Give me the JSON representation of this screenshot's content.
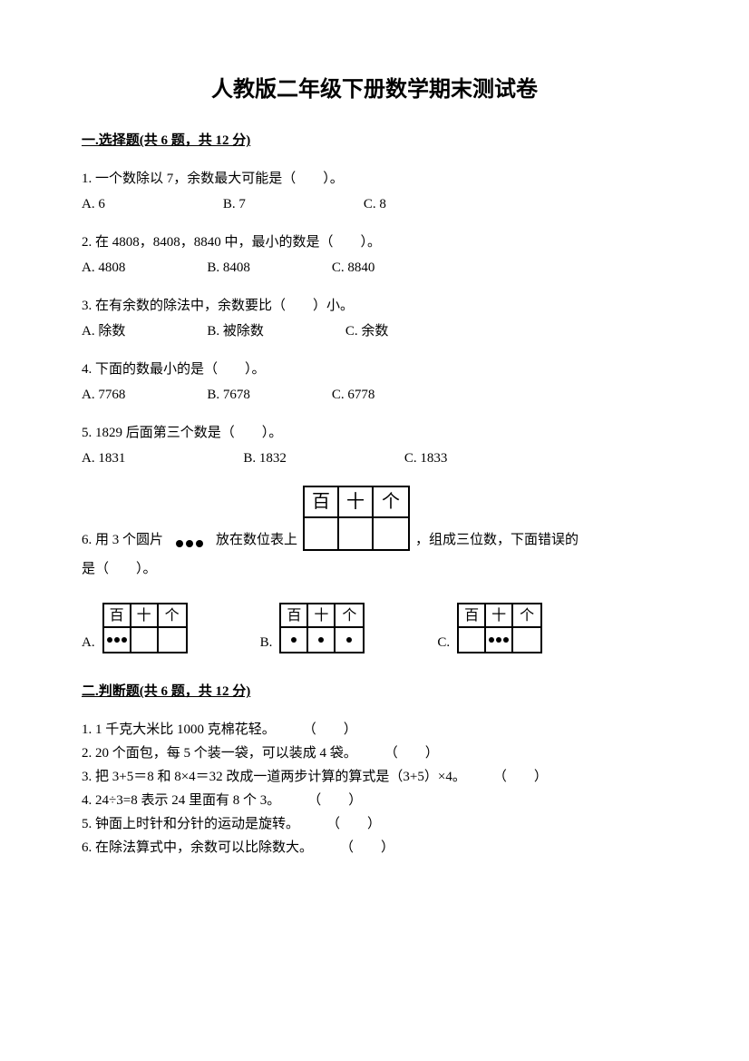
{
  "title": "人教版二年级下册数学期末测试卷",
  "section1": {
    "header": "一.选择题(共 6 题，共 12 分)",
    "q1": {
      "text": "1. 一个数除以 7，余数最大可能是（　　）。",
      "optA": "A. 6",
      "optB": "B. 7",
      "optC": "C. 8"
    },
    "q2": {
      "text": "2. 在 4808，8408，8840 中，最小的数是（　　）。",
      "optA": "A. 4808",
      "optB": "B. 8408",
      "optC": "C. 8840"
    },
    "q3": {
      "text": "3. 在有余数的除法中，余数要比（　　）小。",
      "optA": "A. 除数",
      "optB": "B. 被除数",
      "optC": "C. 余数"
    },
    "q4": {
      "text": "4. 下面的数最小的是（　　）。",
      "optA": "A. 7768",
      "optB": "B. 7678",
      "optC": "C. 6778"
    },
    "q5": {
      "text": "5. 1829 后面第三个数是（　　）。",
      "optA": "A. 1831",
      "optB": "B. 1832",
      "optC": "C. 1833"
    },
    "q6": {
      "prefix": "6. 用 3 个圆片",
      "mid1": "放在数位表上",
      "suffix": "，组成三位数，下面错误的",
      "line2": "是（　　）。",
      "headers": {
        "h": "百",
        "t": "十",
        "o": "个"
      },
      "optA": "A.",
      "optB": "B.",
      "optC": "C."
    }
  },
  "section2": {
    "header": "二.判断题(共 6 题，共 12 分)",
    "items": [
      {
        "text": "1. 1 千克大米比 1000 克棉花轻。",
        "paren": "（　　）"
      },
      {
        "text": "2. 20 个面包，每 5 个装一袋，可以装成 4 袋。",
        "paren": "（　　）"
      },
      {
        "text": "3. 把 3+5＝8 和 8×4＝32 改成一道两步计算的算式是（3+5）×4。",
        "paren": "（　　）"
      },
      {
        "text": "4. 24÷3=8 表示 24 里面有 8 个 3。",
        "paren": "（　　）"
      },
      {
        "text": "5. 钟面上时针和分针的运动是旋转。",
        "paren": "（　　）"
      },
      {
        "text": "6. 在除法算式中，余数可以比除数大。",
        "paren": "（　　）"
      }
    ]
  }
}
